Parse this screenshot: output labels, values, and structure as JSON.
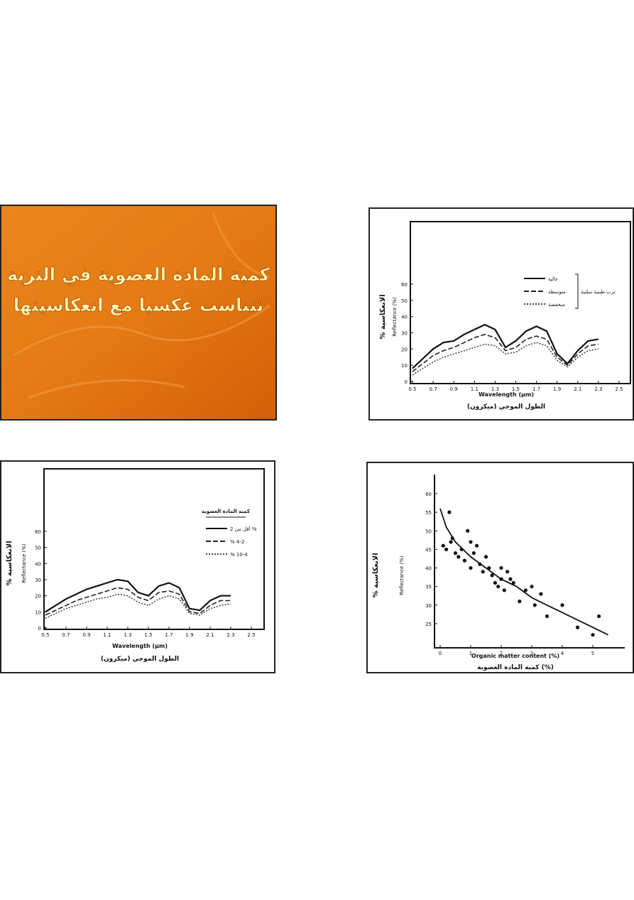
{
  "slides": [
    {
      "title_lines": [
        "كمية المادة العضوية في التربة",
        "تتناسب عكسيا مع انعكاسيتها"
      ]
    },
    {
      "chart_data": {
        "type": "line",
        "y_label_ar": "% الانعكاسية",
        "y_label": "Reflectance (%)",
        "x_label": "Wavelength (µm)",
        "x_label_ar": "الطول الموجي (ميكرون)",
        "x": [
          0.5,
          0.6,
          0.7,
          0.8,
          0.9,
          1.0,
          1.1,
          1.2,
          1.3,
          1.4,
          1.5,
          1.6,
          1.7,
          1.8,
          1.9,
          2.0,
          2.1,
          2.2,
          2.3
        ],
        "xticks": [
          0.5,
          0.7,
          0.9,
          1.1,
          1.3,
          1.5,
          1.7,
          1.9,
          2.1,
          2.3,
          2.5
        ],
        "yticks": [
          0,
          10,
          20,
          30,
          40,
          50,
          60
        ],
        "legend_group": "ترب طينية سلتية",
        "series": [
          {
            "name": "عالية",
            "color": "#111",
            "style": "solid",
            "values": [
              8,
              14,
              20,
              24,
              25,
              29,
              32,
              35,
              32,
              21,
              25,
              31,
              34,
              31,
              17,
              11,
              19,
              25,
              26
            ]
          },
          {
            "name": "متوسطة",
            "color": "#222",
            "style": "dashed",
            "values": [
              6,
              11,
              16,
              19,
              21,
              24,
              27,
              29,
              27,
              19,
              21,
              26,
              28,
              26,
              15,
              10,
              17,
              22,
              23
            ]
          },
          {
            "name": "منخفضة",
            "color": "#444",
            "style": "dotted",
            "values": [
              4,
              8,
              12,
              15,
              17,
              19,
              21,
              23,
              22,
              17,
              18,
              22,
              24,
              22,
              13,
              9,
              15,
              19,
              20
            ]
          }
        ]
      }
    },
    {
      "chart_data": {
        "type": "line",
        "y_label_ar": "% الانعكاسية",
        "y_label": "Reflectance (%)",
        "x_label": "Wavelength (µm)",
        "x_label_ar": "الطول الموجي (ميكرون)",
        "x": [
          0.5,
          0.6,
          0.7,
          0.8,
          0.9,
          1.0,
          1.1,
          1.2,
          1.3,
          1.4,
          1.5,
          1.6,
          1.7,
          1.8,
          1.9,
          2.0,
          2.1,
          2.2,
          2.3
        ],
        "xticks": [
          0.5,
          0.7,
          0.9,
          1.1,
          1.3,
          1.5,
          1.7,
          1.9,
          2.1,
          2.3,
          2.5
        ],
        "yticks": [
          0,
          10,
          20,
          30,
          40,
          50,
          60
        ],
        "legend_title": "كمية المادة العضوية",
        "series": [
          {
            "name": "أقل من 2 %",
            "color": "#111",
            "style": "solid",
            "values": [
              10,
              14,
              18,
              21,
              24,
              26,
              28,
              30,
              29,
              22,
              20,
              26,
              28,
              25,
              12,
              11,
              17,
              20,
              20
            ]
          },
          {
            "name": "% 4-2",
            "color": "#222",
            "style": "dashed",
            "values": [
              8,
              11,
              14,
              17,
              19,
              21,
              23,
              25,
              24,
              19,
              17,
              22,
              23,
              21,
              10,
              9,
              14,
              17,
              17
            ]
          },
          {
            "name": "% 10-4",
            "color": "#444",
            "style": "dotted",
            "values": [
              6,
              9,
              12,
              14,
              16,
              18,
              19,
              21,
              20,
              16,
              14,
              18,
              20,
              18,
              9,
              8,
              12,
              14,
              15
            ]
          }
        ]
      }
    },
    {
      "chart_data": {
        "type": "scatter",
        "y_label_ar": "% الانعكاسية",
        "y_label": "Reflectance (%)",
        "x_label": "Organic matter content (%)",
        "x_label_ar": "كمية المادة العضوية (%)",
        "xticks": [
          0,
          1,
          2,
          3,
          4,
          5
        ],
        "yticks": [
          25,
          30,
          35,
          40,
          45,
          50,
          55,
          60
        ],
        "x": [
          0.1,
          0.2,
          0.3,
          0.35,
          0.4,
          0.5,
          0.6,
          0.7,
          0.8,
          0.9,
          1.0,
          1.0,
          1.1,
          1.2,
          1.3,
          1.4,
          1.5,
          1.6,
          1.7,
          1.8,
          1.9,
          2.0,
          2.0,
          2.1,
          2.2,
          2.3,
          2.4,
          2.6,
          2.8,
          3.0,
          3.1,
          3.3,
          3.5,
          4.0,
          4.5,
          5.0,
          5.2
        ],
        "values": [
          46,
          45,
          55,
          47,
          48,
          44,
          43,
          45,
          42,
          50,
          47,
          40,
          44,
          46,
          41,
          39,
          43,
          40,
          38,
          36,
          35,
          40,
          37,
          34,
          39,
          37,
          36,
          31,
          34,
          35,
          30,
          33,
          27,
          30,
          24,
          22,
          27
        ],
        "fit": {
          "x": [
            0.0,
            0.2,
            0.5,
            1.0,
            1.5,
            2.0,
            2.5,
            3.0,
            3.5,
            4.0,
            4.5,
            5.0,
            5.5
          ],
          "values": [
            56,
            51,
            47,
            43,
            40,
            37,
            35,
            32,
            30,
            28,
            26,
            24,
            22
          ]
        }
      }
    }
  ]
}
